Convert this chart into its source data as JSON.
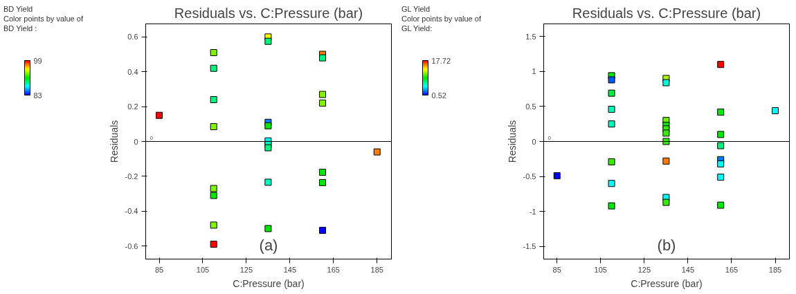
{
  "chart_data": [
    {
      "type": "scatter",
      "title": "Residuals vs. C:Pressure (bar)",
      "xlabel": "C:Pressure (bar)",
      "ylabel": "Residuals",
      "legend_title": "BD Yield",
      "clabel": "Color points by value of BD Yield :",
      "clim": [
        83,
        99
      ],
      "cticks": [
        83,
        99
      ],
      "marker": "square",
      "annotations": [
        "(a)"
      ],
      "xlim": [
        78.8,
        191.6
      ],
      "ylim": [
        -0.675,
        0.675
      ],
      "xticks": [
        85,
        105,
        125,
        145,
        165,
        185
      ],
      "yticks": [
        -0.6,
        -0.4,
        -0.2,
        0,
        0.2,
        0.4,
        0.6
      ],
      "ref_lines": [
        {
          "axis": "y",
          "value": 0,
          "label": "0"
        }
      ],
      "series": [
        {
          "x": [
            85,
            110,
            110,
            110,
            110,
            110,
            110,
            110,
            110,
            135,
            135,
            135,
            135,
            135,
            135,
            135,
            135,
            135,
            160,
            160,
            160,
            160,
            160,
            160,
            160,
            185
          ],
          "values": [
            0.15,
            0.51,
            0.42,
            0.24,
            0.085,
            -0.27,
            -0.31,
            -0.48,
            -0.59,
            0.6,
            0.575,
            0.11,
            0.09,
            0.003,
            -0.017,
            -0.036,
            -0.234,
            -0.5,
            0.5,
            0.48,
            0.27,
            0.22,
            -0.177,
            -0.236,
            -0.51,
            -0.06
          ],
          "cvalues": [
            99,
            93,
            89,
            89,
            93,
            93,
            91,
            93,
            99,
            95,
            89,
            85,
            91,
            87,
            88,
            89,
            88,
            91,
            97,
            89,
            93,
            93,
            91,
            91,
            83,
            97
          ]
        }
      ]
    },
    {
      "type": "scatter",
      "title": "Residuals vs. C:Pressure (bar)",
      "xlabel": "C:Pressure (bar)",
      "ylabel": "Residuals",
      "legend_title": "GL Yield",
      "clabel": "Color points by value of GL Yield:",
      "clim": [
        0.52,
        17.72
      ],
      "cticks": [
        0.52,
        17.72
      ],
      "marker": "square",
      "annotations": [
        "(b)"
      ],
      "xlim": [
        78.9,
        191.5
      ],
      "ylim": [
        -1.68,
        1.68
      ],
      "xticks": [
        85,
        105,
        125,
        145,
        165,
        185
      ],
      "yticks": [
        -1.5,
        -1,
        -0.5,
        0,
        0.5,
        1,
        1.5
      ],
      "ref_lines": [
        {
          "axis": "y",
          "value": 0,
          "label": "0"
        }
      ],
      "series": [
        {
          "x": [
            85,
            110,
            110,
            110,
            110,
            110,
            110,
            110,
            110,
            135,
            135,
            135,
            135,
            135,
            135,
            135,
            135,
            135,
            135,
            160,
            160,
            160,
            160,
            160,
            160,
            160,
            160,
            185
          ],
          "values": [
            -0.49,
            0.94,
            0.88,
            0.69,
            0.46,
            0.25,
            -0.29,
            -0.6,
            -0.92,
            0.9,
            0.84,
            0.3,
            0.23,
            0.18,
            0.12,
            0,
            -0.28,
            -0.8,
            -0.87,
            1.1,
            0.42,
            0.1,
            -0.06,
            -0.26,
            -0.32,
            -0.51,
            -0.91,
            0.44
          ],
          "cvalues": [
            0.52,
            9,
            2,
            8,
            6,
            6,
            10,
            5,
            9,
            12,
            5.5,
            11,
            9,
            10,
            10,
            10,
            15.6,
            4.8,
            10,
            17.72,
            9,
            9,
            7,
            2.6,
            5,
            5,
            9,
            5
          ]
        }
      ]
    }
  ]
}
